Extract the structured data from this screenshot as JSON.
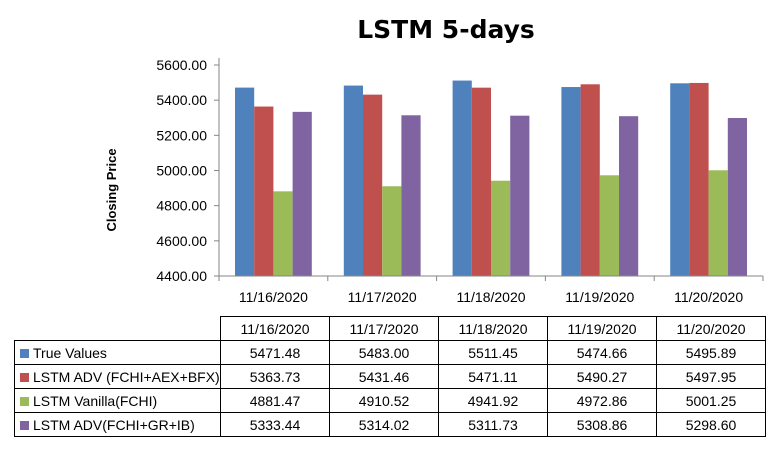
{
  "chart_data": {
    "type": "bar",
    "title": "LSTM 5-days",
    "ylabel": "Closing Price",
    "xlabel": "",
    "ylim": [
      4400,
      5600
    ],
    "yticks": [
      "4400.00",
      "4600.00",
      "4800.00",
      "5000.00",
      "5200.00",
      "5400.00",
      "5600.00"
    ],
    "categories": [
      "11/16/2020",
      "11/17/2020",
      "11/18/2020",
      "11/19/2020",
      "11/20/2020"
    ],
    "series": [
      {
        "name": "True Values",
        "color": "#4F81BD",
        "values": [
          5471.48,
          5483.0,
          5511.45,
          5474.66,
          5495.89
        ],
        "labels": [
          "5471.48",
          "5483.00",
          "5511.45",
          "5474.66",
          "5495.89"
        ]
      },
      {
        "name": "LSTM ADV (FCHI+AEX+BFX)",
        "color": "#C0504D",
        "values": [
          5363.73,
          5431.46,
          5471.11,
          5490.27,
          5497.95
        ],
        "labels": [
          "5363.73",
          "5431.46",
          "5471.11",
          "5490.27",
          "5497.95"
        ]
      },
      {
        "name": "LSTM Vanilla(FCHI)",
        "color": "#9BBB59",
        "values": [
          4881.47,
          4910.52,
          4941.92,
          4972.86,
          5001.25
        ],
        "labels": [
          "4881.47",
          "4910.52",
          "4941.92",
          "4972.86",
          "5001.25"
        ]
      },
      {
        "name": "LSTM ADV(FCHI+GR+IB)",
        "color": "#8064A2",
        "values": [
          5333.44,
          5314.02,
          5311.73,
          5308.86,
          5298.6
        ],
        "labels": [
          "5333.44",
          "5314.02",
          "5311.73",
          "5308.86",
          "5298.60"
        ]
      }
    ],
    "legend_placement": "data table below chart",
    "grid": false
  }
}
